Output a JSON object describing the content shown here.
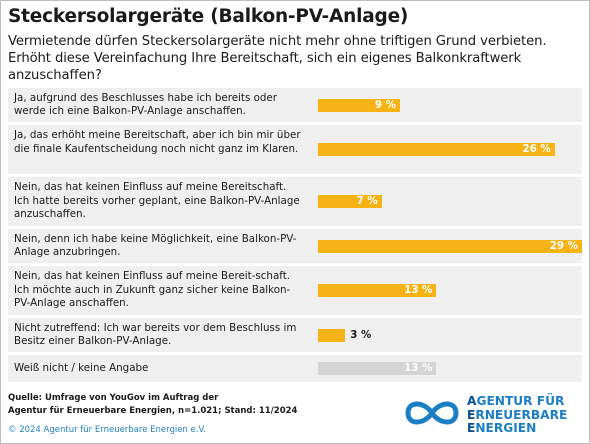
{
  "header": {
    "title": "Steckersolargeräte (Balkon-PV-Anlage)",
    "subtitle": "Vermietende dürfen Steckersolargeräte nicht mehr ohne triftigen Grund verbieten. Erhöht diese Vereinfachung Ihre Bereitschaft, sich ein eigenes Balkonkraftwerk anzuschaffen?"
  },
  "colors": {
    "bar": "#f7b316",
    "bar_muted": "#d4d4d4",
    "row_bg": "#efefef",
    "brand": "#1d7fc3"
  },
  "chart_data": {
    "type": "bar",
    "orientation": "horizontal",
    "categories": [
      "Ja, aufgrund des Beschlusses habe ich bereits oder werde ich eine Balkon-PV-Anlage anschaffen.",
      "Ja, das erhöht meine Bereitschaft, aber ich bin mir über die finale Kaufentscheidung noch nicht ganz im Klaren.",
      "Nein, das hat keinen Einfluss auf meine Bereitschaft. Ich hatte bereits vorher geplant, eine Balkon-PV-Anlage anzuschaffen.",
      "Nein, denn ich habe keine Möglichkeit, eine Balkon-PV-Anlage anzubringen.",
      "Nein, das hat keinen Einfluss auf meine Bereit-schaft. Ich möchte auch in Zukunft ganz sicher keine Balkon-PV-Anlage anschaffen.",
      "Nicht zutreffend: Ich war bereits vor dem Beschluss im Besitz einer Balkon-PV-Anlage.",
      "Weiß nicht / keine Angabe"
    ],
    "values": [
      9,
      26,
      7,
      29,
      13,
      3,
      13
    ],
    "value_labels": [
      "9 %",
      "26 %",
      "7 %",
      "29 %",
      "13 %",
      "3 %",
      "13 %"
    ],
    "bar_colors": [
      "#f7b316",
      "#f7b316",
      "#f7b316",
      "#f7b316",
      "#f7b316",
      "#f7b316",
      "#d4d4d4"
    ],
    "xlim": [
      0,
      29
    ]
  },
  "footer": {
    "source_line1": "Quelle: Umfrage von YouGov im Auftrag der",
    "source_line2": "Agentur für Erneuerbare Energien, n=1.021; Stand: 11/2024",
    "copyright": "© 2024 Agentur für Erneuerbare Energien e.V.",
    "logo_lines": [
      {
        "first": "A",
        "rest": "GENTUR FÜR"
      },
      {
        "first": "E",
        "rest": "RNEUERBARE"
      },
      {
        "first": "E",
        "rest": "NERGIEN"
      }
    ]
  }
}
